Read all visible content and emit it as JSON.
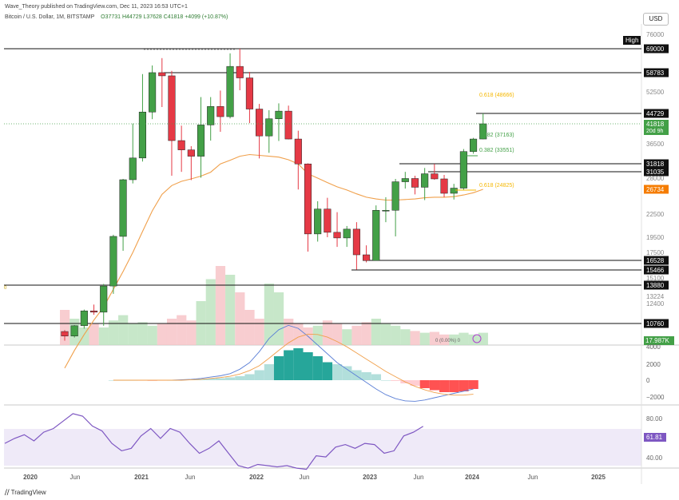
{
  "header": {
    "publisher": "Wave_Theory published on TradingView.com, Dec 11, 2023 16:53 UTC+1",
    "symbol": "Bitcoin / U.S. Dollar, 1M, BITSTAMP",
    "ohlc": "O37731 H44729 L37628 C41818 +4099 (+10.87%)"
  },
  "currency_button": "USD",
  "footer_logo": "TradingView",
  "colors": {
    "up": "#43a047",
    "down": "#e53945",
    "ema": "#f0a04b",
    "macd": "#5b7fd6",
    "signal": "#f0a04b",
    "rsi": "#7e57c2",
    "fib": "#f5b700"
  },
  "chart_data": {
    "type": "candlestick",
    "x_ticks": [
      "2020",
      "Jun",
      "2021",
      "Jun",
      "2022",
      "Jun",
      "2023",
      "Jun",
      "2024",
      "Jun",
      "2025"
    ],
    "y_ticks": [
      "76000",
      "58783",
      "52500",
      "44729",
      "41818",
      "36500",
      "31818",
      "31035",
      "28000",
      "22500",
      "19500",
      "17500",
      "15100",
      "13224",
      "12400",
      "10760"
    ],
    "candles": [
      {
        "o": 10200,
        "h": 10300,
        "l": 9600,
        "c": 9900
      },
      {
        "o": 9900,
        "h": 10650,
        "l": 9800,
        "c": 10600
      },
      {
        "o": 10600,
        "h": 11800,
        "l": 10400,
        "c": 11700
      },
      {
        "o": 11700,
        "h": 12200,
        "l": 11400,
        "c": 11600
      },
      {
        "o": 11600,
        "h": 14000,
        "l": 10600,
        "c": 13800
      },
      {
        "o": 13800,
        "h": 19800,
        "l": 13100,
        "c": 19600
      },
      {
        "o": 19600,
        "h": 29200,
        "l": 17700,
        "c": 29000
      },
      {
        "o": 29000,
        "h": 41900,
        "l": 28100,
        "c": 33100
      },
      {
        "o": 33100,
        "h": 58300,
        "l": 32300,
        "c": 45200
      },
      {
        "o": 45200,
        "h": 61700,
        "l": 43100,
        "c": 58800
      },
      {
        "o": 58800,
        "h": 64800,
        "l": 46900,
        "c": 57700
      },
      {
        "o": 57700,
        "h": 59500,
        "l": 30000,
        "c": 37300
      },
      {
        "o": 37300,
        "h": 41300,
        "l": 31000,
        "c": 35000
      },
      {
        "o": 35000,
        "h": 35900,
        "l": 28900,
        "c": 33500
      },
      {
        "o": 33500,
        "h": 50500,
        "l": 29500,
        "c": 41500
      },
      {
        "o": 41500,
        "h": 50500,
        "l": 37300,
        "c": 47100
      },
      {
        "o": 47100,
        "h": 52900,
        "l": 39600,
        "c": 43800
      },
      {
        "o": 43800,
        "h": 66900,
        "l": 43300,
        "c": 61300
      },
      {
        "o": 61300,
        "h": 69000,
        "l": 53000,
        "c": 57000
      },
      {
        "o": 57000,
        "h": 59100,
        "l": 42000,
        "c": 46200
      },
      {
        "o": 46200,
        "h": 48000,
        "l": 33000,
        "c": 38500
      },
      {
        "o": 38500,
        "h": 45800,
        "l": 34300,
        "c": 43200
      },
      {
        "o": 43200,
        "h": 48200,
        "l": 37200,
        "c": 45500
      },
      {
        "o": 45500,
        "h": 47400,
        "l": 37600,
        "c": 37700
      },
      {
        "o": 37700,
        "h": 39900,
        "l": 26700,
        "c": 31800
      },
      {
        "o": 31800,
        "h": 31900,
        "l": 17600,
        "c": 19900
      },
      {
        "o": 19900,
        "h": 24600,
        "l": 18900,
        "c": 23300
      },
      {
        "o": 23300,
        "h": 25200,
        "l": 19500,
        "c": 20100
      },
      {
        "o": 20100,
        "h": 22800,
        "l": 18200,
        "c": 19400
      },
      {
        "o": 19400,
        "h": 20900,
        "l": 18200,
        "c": 20500
      },
      {
        "o": 20500,
        "h": 21400,
        "l": 15500,
        "c": 17200
      },
      {
        "o": 17200,
        "h": 18400,
        "l": 16300,
        "c": 16500
      },
      {
        "o": 16500,
        "h": 23900,
        "l": 16500,
        "c": 23100
      },
      {
        "o": 23100,
        "h": 25300,
        "l": 21400,
        "c": 23100
      },
      {
        "o": 23100,
        "h": 29200,
        "l": 19600,
        "c": 28500
      },
      {
        "o": 28500,
        "h": 31000,
        "l": 26900,
        "c": 29300
      },
      {
        "o": 29300,
        "h": 30000,
        "l": 25800,
        "c": 27200
      },
      {
        "o": 27200,
        "h": 31400,
        "l": 24800,
        "c": 30500
      },
      {
        "o": 30500,
        "h": 31800,
        "l": 29000,
        "c": 29200
      },
      {
        "o": 29200,
        "h": 30200,
        "l": 25300,
        "c": 26000
      },
      {
        "o": 26000,
        "h": 28000,
        "l": 24900,
        "c": 27000
      },
      {
        "o": 27000,
        "h": 35200,
        "l": 26600,
        "c": 34600
      },
      {
        "o": 34600,
        "h": 38000,
        "l": 34100,
        "c": 37700
      },
      {
        "o": 37700,
        "h": 44729,
        "l": 37628,
        "c": 41818
      }
    ],
    "ema_label": "26734",
    "price_label": "41818",
    "countdown_label": "20d 9h",
    "horizontal_levels": [
      {
        "value": 69000,
        "label": "69000"
      },
      {
        "value": 58783,
        "label": "58783"
      },
      {
        "value": 44729,
        "label": "44729"
      },
      {
        "value": 31818,
        "label": "31818"
      },
      {
        "value": 31035,
        "label": "31035"
      },
      {
        "value": 16528,
        "label": "16528"
      },
      {
        "value": 15466,
        "label": "15466"
      },
      {
        "value": 13880,
        "label": "13880"
      },
      {
        "value": 10760,
        "label": "10760"
      }
    ],
    "high_label": "High",
    "fib_labels": [
      {
        "text": "0.618 (48666)",
        "color": "#f5b700"
      },
      {
        "text": "0.382 (37163)",
        "color": "#43a047"
      },
      {
        "text": "0.382 (33551)",
        "color": "#43a047"
      },
      {
        "text": "0.618 (24825)",
        "color": "#f5b700"
      }
    ],
    "volume_label": "17.987K",
    "volume_zero_label": "0 (0.00%) 0",
    "macd_ticks": [
      "4000",
      "2000",
      "0",
      "−2000"
    ],
    "rsi_ticks": [
      "80.00",
      "40.00"
    ],
    "rsi_label": "61.81"
  }
}
